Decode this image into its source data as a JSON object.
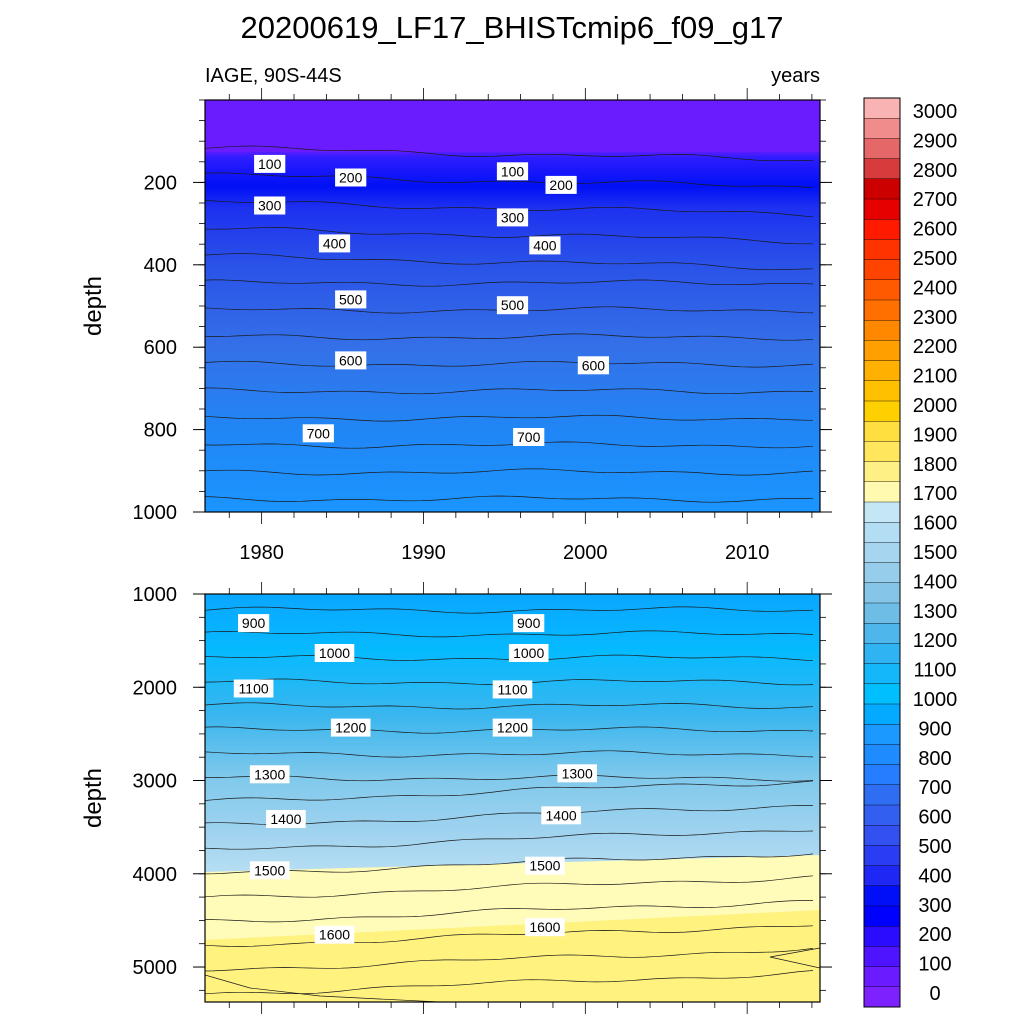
{
  "title": "20200619_LF17_BHISTcmip6_f09_g17",
  "subtitle_left": "IAGE, 90S-44S",
  "subtitle_right": "years",
  "chart_data": [
    {
      "type": "contour",
      "name": "upper-panel",
      "ylabel": "depth",
      "xlim": [
        1976.5,
        2014.5
      ],
      "ylim": [
        0,
        1000
      ],
      "x_ticks": [
        "1980",
        "1990",
        "2000",
        "2010"
      ],
      "y_ticks": [
        "200",
        "400",
        "600",
        "800",
        "1000"
      ],
      "contour_labels": [
        {
          "text": "100",
          "x": 1980.5,
          "y": 155
        },
        {
          "text": "100",
          "x": 1995.5,
          "y": 173
        },
        {
          "text": "200",
          "x": 1985.5,
          "y": 188
        },
        {
          "text": "200",
          "x": 1998.5,
          "y": 206
        },
        {
          "text": "300",
          "x": 1980.5,
          "y": 256
        },
        {
          "text": "300",
          "x": 1995.5,
          "y": 285
        },
        {
          "text": "400",
          "x": 1984.5,
          "y": 348
        },
        {
          "text": "400",
          "x": 1997.5,
          "y": 353
        },
        {
          "text": "500",
          "x": 1985.5,
          "y": 484
        },
        {
          "text": "500",
          "x": 1995.5,
          "y": 498
        },
        {
          "text": "600",
          "x": 1985.5,
          "y": 632
        },
        {
          "text": "600",
          "x": 2000.5,
          "y": 644
        },
        {
          "text": "700",
          "x": 1983.5,
          "y": 809
        },
        {
          "text": "700",
          "x": 1996.5,
          "y": 818
        }
      ]
    },
    {
      "type": "contour",
      "name": "lower-panel",
      "ylabel": "depth",
      "xlim": [
        1976.5,
        2014.5
      ],
      "ylim": [
        1000,
        5375
      ],
      "y_ticks": [
        "1000",
        "2000",
        "3000",
        "4000",
        "5000"
      ],
      "contour_labels": [
        {
          "text": "900",
          "x": 1979.5,
          "y": 1312
        },
        {
          "text": "900",
          "x": 1996.5,
          "y": 1312
        },
        {
          "text": "1000",
          "x": 1984.5,
          "y": 1633
        },
        {
          "text": "1000",
          "x": 1996.5,
          "y": 1633
        },
        {
          "text": "1100",
          "x": 1979.5,
          "y": 2013
        },
        {
          "text": "1100",
          "x": 1995.5,
          "y": 2023
        },
        {
          "text": "1200",
          "x": 1985.5,
          "y": 2433
        },
        {
          "text": "1200",
          "x": 1995.5,
          "y": 2433
        },
        {
          "text": "1300",
          "x": 1980.5,
          "y": 2933
        },
        {
          "text": "1300",
          "x": 1999.5,
          "y": 2923
        },
        {
          "text": "1400",
          "x": 1981.5,
          "y": 3413
        },
        {
          "text": "1400",
          "x": 1998.5,
          "y": 3373
        },
        {
          "text": "1500",
          "x": 1980.5,
          "y": 3963
        },
        {
          "text": "1500",
          "x": 1997.5,
          "y": 3913
        },
        {
          "text": "1600",
          "x": 1984.5,
          "y": 4653
        },
        {
          "text": "1600",
          "x": 1997.5,
          "y": 4573
        }
      ]
    }
  ],
  "colorbar": {
    "labels": [
      "3000",
      "2900",
      "2800",
      "2700",
      "2600",
      "2500",
      "2400",
      "2300",
      "2200",
      "2100",
      "2000",
      "1900",
      "1800",
      "1700",
      "1600",
      "1500",
      "1400",
      "1300",
      "1200",
      "1100",
      "1000",
      "900",
      "800",
      "700",
      "600",
      "500",
      "400",
      "300",
      "200",
      "100",
      "0"
    ],
    "colors_top_to_bottom": [
      "#f9b3b3",
      "#f18c8c",
      "#e66767",
      "#d83b3b",
      "#cd0000",
      "#e60000",
      "#ff1a00",
      "#ff3300",
      "#ff4400",
      "#ff5a00",
      "#ff7000",
      "#ff8800",
      "#ffa000",
      "#ffb000",
      "#ffc000",
      "#ffd000",
      "#ffdf40",
      "#ffe65c",
      "#fff085",
      "#fffab0",
      "#c5e6f5",
      "#b3ddf2",
      "#a5d5ef",
      "#96cdeb",
      "#84c5e8",
      "#6dbde6",
      "#4fb6ec",
      "#2fb3f3",
      "#14b7fa",
      "#00bfff",
      "#04aaff",
      "#1b99ff",
      "#1e8bff",
      "#267dff",
      "#2f6df2",
      "#335ff0",
      "#3350f0",
      "#2b3df2",
      "#1f27f5",
      "#000ff8",
      "#0000ff",
      "#2a0dff",
      "#4f14ff",
      "#6a1bff",
      "#7d22ff"
    ]
  }
}
